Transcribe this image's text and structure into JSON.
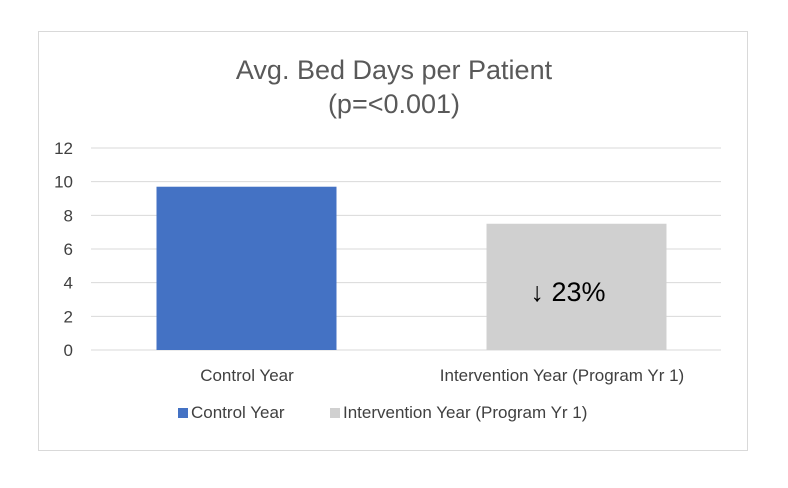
{
  "chart_data": {
    "type": "bar",
    "title": "Avg. Bed Days per Patient",
    "subtitle": "(p=<0.001)",
    "categories": [
      "Control Year",
      "Intervention Year (Program Yr 1)"
    ],
    "values": [
      9.7,
      7.5
    ],
    "colors": [
      "#4472c4",
      "#d0d0d0"
    ],
    "ylim": [
      0,
      12
    ],
    "yticks": [
      0,
      2,
      4,
      6,
      8,
      10,
      12
    ],
    "grid": true,
    "legend": {
      "placement": "bottom",
      "entries": [
        "Control Year",
        "Intervention Year (Program Yr 1)"
      ]
    },
    "annotation": {
      "text": "↓ 23%",
      "category_index": 1
    }
  }
}
